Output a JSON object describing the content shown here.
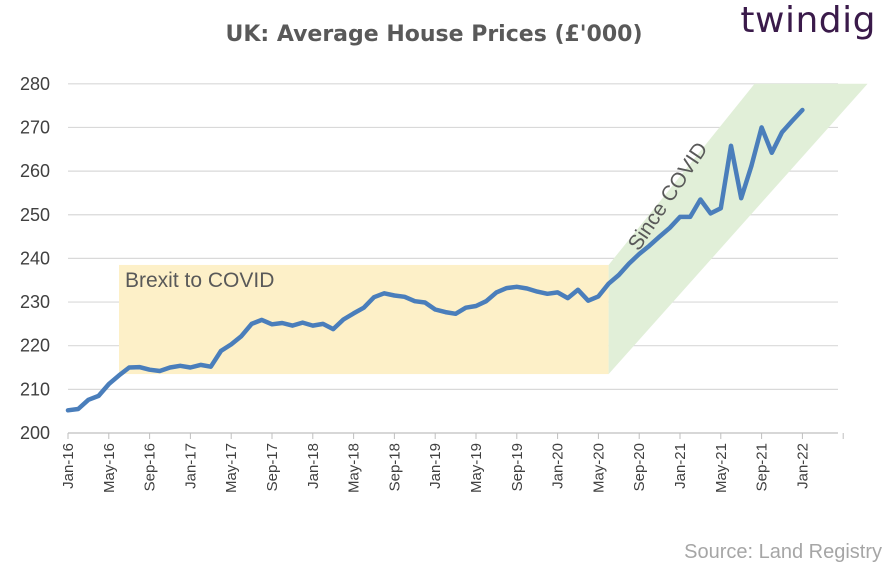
{
  "logo": "twindig",
  "source": "Source: Land Registry",
  "colors": {
    "line": "#4a7ebb",
    "brexit_box": "#fdf0c8",
    "covid_band": "#e1efd8",
    "grid": "#d9d9d9"
  },
  "chart_data": {
    "type": "line",
    "title": "UK: Average House Prices (£'000)",
    "xlabel": "",
    "ylabel": "",
    "ylim": [
      200,
      280
    ],
    "yticks": [
      200,
      210,
      220,
      230,
      240,
      250,
      260,
      270,
      280
    ],
    "grid": true,
    "xtick_labels": [
      "Jan-16",
      "May-16",
      "Sep-16",
      "Jan-17",
      "May-17",
      "Sep-17",
      "Jan-18",
      "May-18",
      "Sep-18",
      "Jan-19",
      "May-19",
      "Sep-19",
      "Jan-20",
      "May-20",
      "Sep-20",
      "Jan-21",
      "May-21",
      "Sep-21",
      "Jan-22"
    ],
    "annotations": [
      {
        "label": "Brexit to COVID",
        "shape": "box",
        "x_start": "Jun-16",
        "x_end": "Jun-20",
        "y_range": [
          213.5,
          238.5
        ]
      },
      {
        "label": "Since COVID",
        "shape": "band",
        "x_start": "Jun-20",
        "x_end": "Feb-22"
      }
    ],
    "series": [
      {
        "x": [
          "Jan-16",
          "Feb-16",
          "Mar-16",
          "Apr-16",
          "May-16",
          "Jun-16",
          "Jul-16",
          "Aug-16",
          "Sep-16",
          "Oct-16",
          "Nov-16",
          "Dec-16",
          "Jan-17",
          "Feb-17",
          "Mar-17",
          "Apr-17",
          "May-17",
          "Jun-17",
          "Jul-17",
          "Aug-17",
          "Sep-17",
          "Oct-17",
          "Nov-17",
          "Dec-17",
          "Jan-18",
          "Feb-18",
          "Mar-18",
          "Apr-18",
          "May-18",
          "Jun-18",
          "Jul-18",
          "Aug-18",
          "Sep-18",
          "Oct-18",
          "Nov-18",
          "Dec-18",
          "Jan-19",
          "Feb-19",
          "Mar-19",
          "Apr-19",
          "May-19",
          "Jun-19",
          "Jul-19",
          "Aug-19",
          "Sep-19",
          "Oct-19",
          "Nov-19",
          "Dec-19",
          "Jan-20",
          "Feb-20",
          "Mar-20",
          "Apr-20",
          "May-20",
          "Jun-20",
          "Jul-20",
          "Aug-20",
          "Sep-20",
          "Oct-20",
          "Nov-20",
          "Dec-20",
          "Jan-21",
          "Feb-21",
          "Mar-21",
          "Apr-21",
          "May-21",
          "Jun-21",
          "Jul-21",
          "Aug-21",
          "Sep-21",
          "Oct-21",
          "Nov-21",
          "Dec-21",
          "Jan-22"
        ],
        "values": [
          205.2,
          205.5,
          207.6,
          208.5,
          211.2,
          213.2,
          215.0,
          215.1,
          214.5,
          214.2,
          215.0,
          215.4,
          215.0,
          215.6,
          215.2,
          218.8,
          220.3,
          222.2,
          225.0,
          225.9,
          224.9,
          225.2,
          224.6,
          225.3,
          224.6,
          225.0,
          223.8,
          226.0,
          227.4,
          228.7,
          231.1,
          232.0,
          231.5,
          231.2,
          230.2,
          229.9,
          228.3,
          227.7,
          227.3,
          228.7,
          229.1,
          230.2,
          232.2,
          233.2,
          233.5,
          233.1,
          232.4,
          231.9,
          232.2,
          230.9,
          232.8,
          230.3,
          231.3,
          234.2,
          236.2,
          238.8,
          241.0,
          242.9,
          245.0,
          247.0,
          249.5,
          249.5,
          253.5,
          250.3,
          251.5,
          265.8,
          253.8,
          261.2,
          270.0,
          264.2,
          268.9,
          271.5,
          274.0
        ]
      }
    ]
  }
}
